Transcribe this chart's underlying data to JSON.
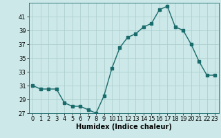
{
  "x": [
    0,
    1,
    2,
    3,
    4,
    5,
    6,
    7,
    8,
    9,
    10,
    11,
    12,
    13,
    14,
    15,
    16,
    17,
    18,
    19,
    20,
    21,
    22,
    23
  ],
  "y": [
    31.0,
    30.5,
    30.5,
    30.5,
    28.5,
    28.0,
    28.0,
    27.5,
    27.0,
    29.5,
    33.5,
    36.5,
    38.0,
    38.5,
    39.5,
    40.0,
    42.0,
    42.5,
    39.5,
    39.0,
    37.0,
    34.5,
    32.5,
    32.5
  ],
  "xlabel": "Humidex (Indice chaleur)",
  "ylim": [
    27,
    43
  ],
  "xlim": [
    -0.5,
    23.5
  ],
  "yticks": [
    27,
    29,
    31,
    33,
    35,
    37,
    39,
    41
  ],
  "xticks": [
    0,
    1,
    2,
    3,
    4,
    5,
    6,
    7,
    8,
    9,
    10,
    11,
    12,
    13,
    14,
    15,
    16,
    17,
    18,
    19,
    20,
    21,
    22,
    23
  ],
  "bg_color": "#cce8e8",
  "line_color": "#1a6b6b",
  "marker_color": "#1a6b6b",
  "grid_color": "#aacccc",
  "xlabel_fontsize": 7,
  "tick_fontsize": 6,
  "line_width": 1.0,
  "marker_size": 2.5
}
